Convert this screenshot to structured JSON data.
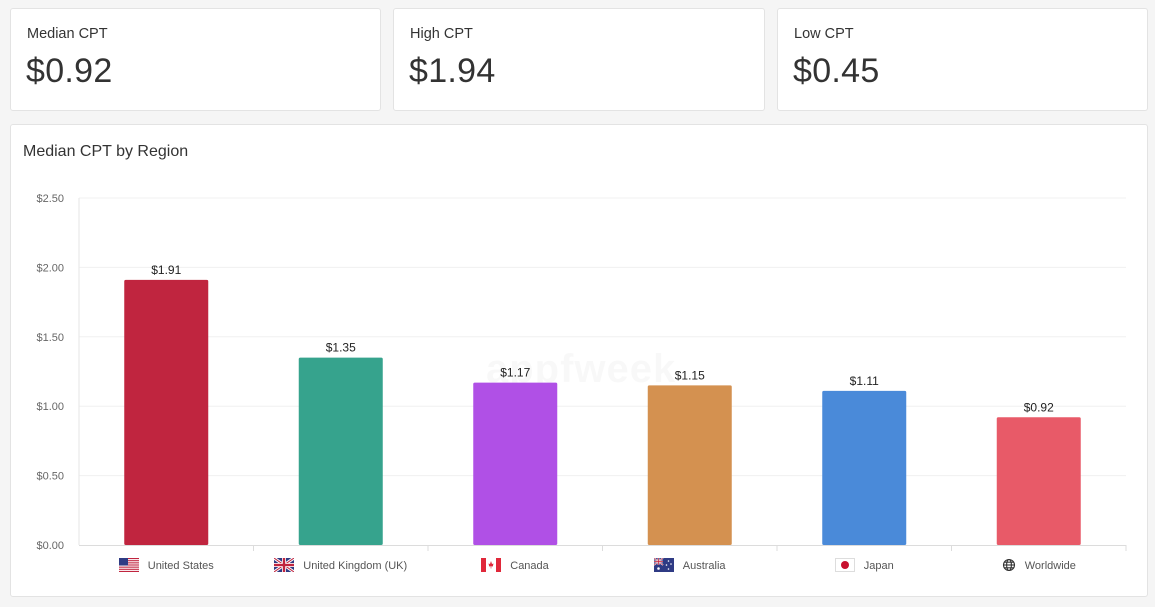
{
  "stats": [
    {
      "label": "Median CPT",
      "value": "$0.92"
    },
    {
      "label": "High CPT",
      "value": "$1.94"
    },
    {
      "label": "Low CPT",
      "value": "$0.45"
    }
  ],
  "watermark": "appfweek",
  "chart_data": {
    "type": "bar",
    "title": "Median CPT by Region",
    "xlabel": "",
    "ylabel": "",
    "ylim": [
      0,
      2.5
    ],
    "yticks": [
      "$0.00",
      "$0.50",
      "$1.00",
      "$1.50",
      "$2.00",
      "$2.50"
    ],
    "ytick_values": [
      0,
      0.5,
      1.0,
      1.5,
      2.0,
      2.5
    ],
    "grid": true,
    "legend_position": "bottom",
    "categories": [
      "United States",
      "United Kingdom (UK)",
      "Canada",
      "Australia",
      "Japan",
      "Worldwide"
    ],
    "values": [
      1.91,
      1.35,
      1.17,
      1.15,
      1.11,
      0.92
    ],
    "data_labels": [
      "$1.91",
      "$1.35",
      "$1.17",
      "$1.15",
      "$1.11",
      "$0.92"
    ],
    "colors": [
      "#c0253f",
      "#36a38d",
      "#b050e6",
      "#d49150",
      "#4a8ad9",
      "#e85a68"
    ],
    "legend_icons": [
      "us-flag-icon",
      "uk-flag-icon",
      "canada-flag-icon",
      "australia-flag-icon",
      "japan-flag-icon",
      "globe-icon"
    ]
  }
}
